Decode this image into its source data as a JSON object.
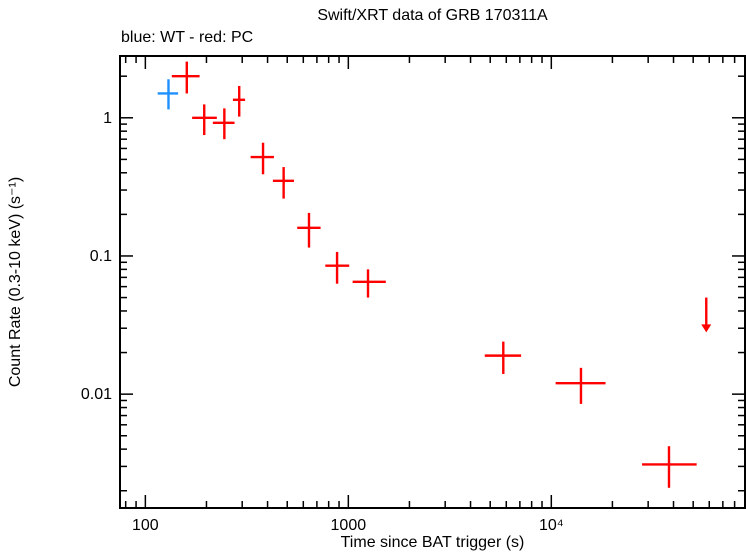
{
  "page": {
    "background": "#ffffff"
  },
  "chart_data": {
    "type": "scatter",
    "title": "Swift/XRT data of GRB 170311A",
    "subtitle": "blue: WT - red: PC",
    "xlabel": "Time since BAT trigger (s)",
    "ylabel": "Count Rate (0.3-10 keV) (s⁻¹)",
    "xscale": "log",
    "yscale": "log",
    "xlim": [
      75,
      90000
    ],
    "ylim": [
      0.0015,
      2.8
    ],
    "grid": false,
    "xticks": [
      {
        "value": 100,
        "label": "100"
      },
      {
        "value": 1000,
        "label": "1000"
      },
      {
        "value": 10000,
        "label": "10⁴"
      }
    ],
    "yticks": [
      {
        "value": 1,
        "label": "1"
      },
      {
        "value": 0.1,
        "label": "0.1"
      },
      {
        "value": 0.01,
        "label": "0.01"
      }
    ],
    "legend": [
      {
        "name": "WT",
        "color": "#1e90ff"
      },
      {
        "name": "PC",
        "color": "#ff0000"
      }
    ],
    "series": [
      {
        "name": "WT",
        "color": "#1e90ff",
        "points": [
          {
            "t": 130,
            "terr": [
              15,
              15
            ],
            "rate": 1.5,
            "rerr": [
              0.35,
              0.4
            ]
          }
        ]
      },
      {
        "name": "PC",
        "color": "#ff0000",
        "points": [
          {
            "t": 160,
            "terr": [
              25,
              25
            ],
            "rate": 2.0,
            "rerr": [
              0.5,
              0.55
            ]
          },
          {
            "t": 195,
            "terr": [
              25,
              30
            ],
            "rate": 1.0,
            "rerr": [
              0.25,
              0.25
            ]
          },
          {
            "t": 245,
            "terr": [
              30,
              30
            ],
            "rate": 0.92,
            "rerr": [
              0.22,
              0.25
            ]
          },
          {
            "t": 290,
            "terr": [
              20,
              20
            ],
            "rate": 1.35,
            "rerr": [
              0.33,
              0.35
            ]
          },
          {
            "t": 380,
            "terr": [
              50,
              50
            ],
            "rate": 0.52,
            "rerr": [
              0.13,
              0.14
            ]
          },
          {
            "t": 480,
            "terr": [
              55,
              60
            ],
            "rate": 0.35,
            "rerr": [
              0.09,
              0.09
            ]
          },
          {
            "t": 640,
            "terr": [
              80,
              90
            ],
            "rate": 0.16,
            "rerr": [
              0.045,
              0.045
            ]
          },
          {
            "t": 880,
            "terr": [
              110,
              130
            ],
            "rate": 0.085,
            "rerr": [
              0.022,
              0.022
            ]
          },
          {
            "t": 1250,
            "terr": [
              200,
              280
            ],
            "rate": 0.065,
            "rerr": [
              0.015,
              0.015
            ]
          },
          {
            "t": 5800,
            "terr": [
              1100,
              1300
            ],
            "rate": 0.019,
            "rerr": [
              0.005,
              0.005
            ]
          },
          {
            "t": 14000,
            "terr": [
              3500,
              4500
            ],
            "rate": 0.012,
            "rerr": [
              0.0035,
              0.0035
            ]
          },
          {
            "t": 38000,
            "terr": [
              10000,
              14000
            ],
            "rate": 0.0031,
            "rerr": [
              0.001,
              0.0011
            ]
          }
        ]
      }
    ],
    "upper_limits": [
      {
        "t": 58000,
        "rate": 0.05,
        "arrow_to": 0.028,
        "color": "#ff0000"
      }
    ]
  }
}
